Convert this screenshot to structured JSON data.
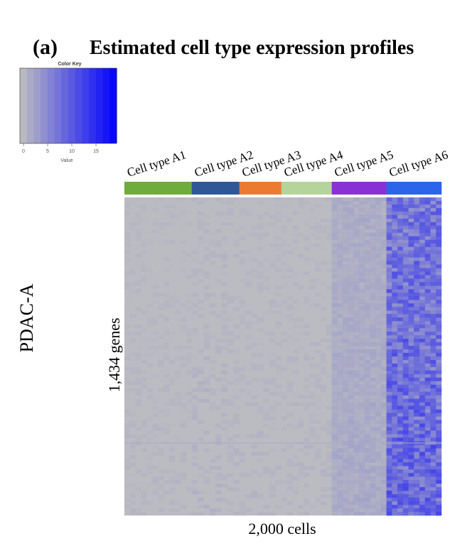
{
  "chart_data": {
    "type": "heatmap",
    "panel_label": "(a)",
    "title": "Estimated cell type expression profiles",
    "row_label": "PDAC-A",
    "ylabel": "1,434 genes",
    "xlabel": "2,000 cells",
    "color_key": {
      "title": "Color Key",
      "xlabel": "Value",
      "ticks": [
        "0",
        "5",
        "10",
        "15"
      ],
      "range": [
        0,
        20
      ],
      "low_color": "#c0c0c0",
      "high_color": "#0000ff"
    },
    "cell_types": [
      {
        "name": "Cell type A1",
        "color": "#6fab3d",
        "cells": 425,
        "mean_value": 1.0
      },
      {
        "name": "Cell type A2",
        "color": "#2e5797",
        "cells": 300,
        "mean_value": 1.5
      },
      {
        "name": "Cell type A3",
        "color": "#ec7b32",
        "cells": 265,
        "mean_value": 1.2
      },
      {
        "name": "Cell type A4",
        "color": "#b5d49b",
        "cells": 318,
        "mean_value": 1.2
      },
      {
        "name": "Cell type A5",
        "color": "#8a31d5",
        "cells": 345,
        "mean_value": 3.5
      },
      {
        "name": "Cell type A6",
        "color": "#2c64ea",
        "cells": 347,
        "mean_value": 9.0
      }
    ]
  }
}
